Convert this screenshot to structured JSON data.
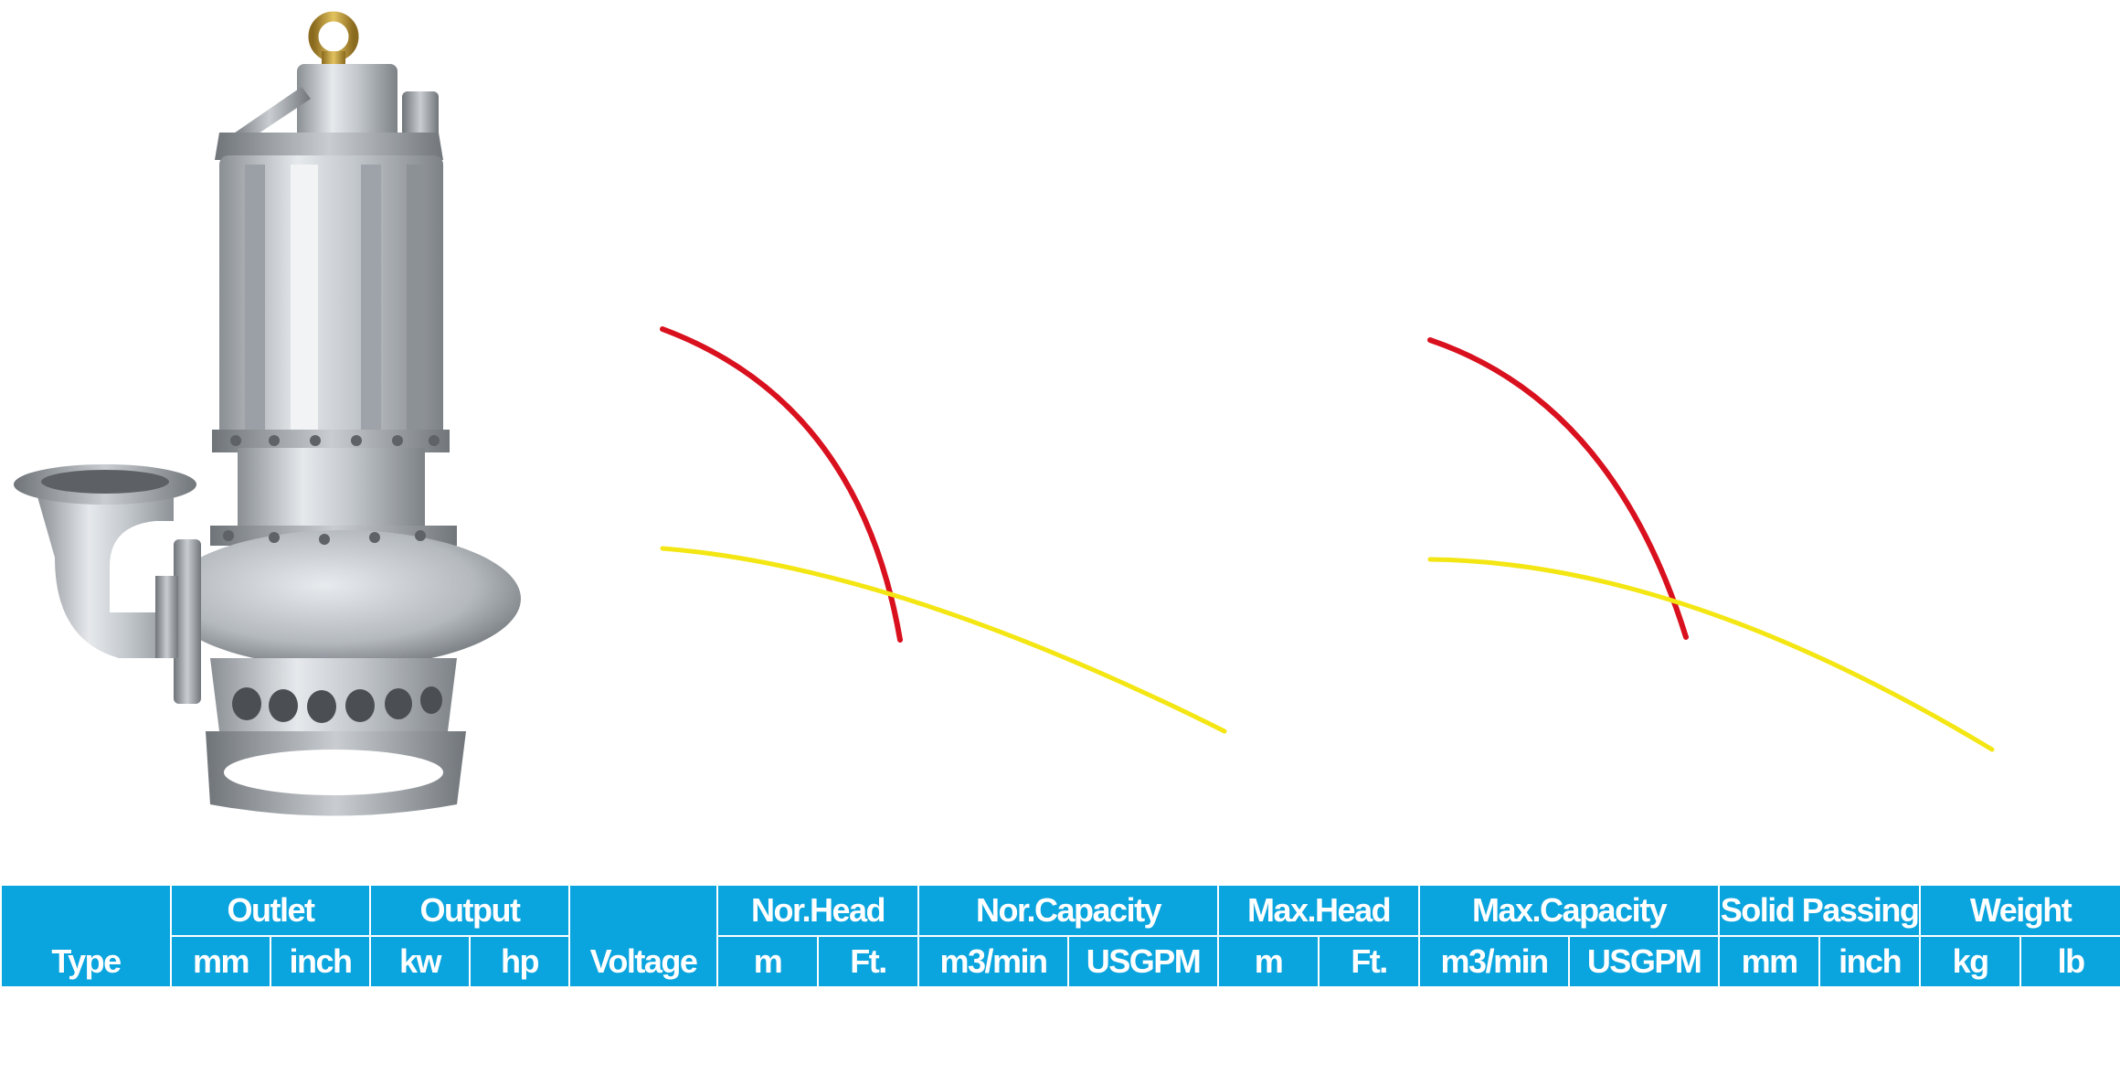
{
  "image": {
    "subject": "pump-photo"
  },
  "curves": {
    "colors": {
      "head": "#d9101e",
      "capacity": "#f3e613"
    }
  },
  "table": {
    "colors": {
      "header_bg": "#0aa4de",
      "text": "#ffffff",
      "border": "#ffffff"
    },
    "groups": {
      "type": "Type",
      "outlet": "Outlet",
      "output": "Output",
      "voltage": "Voltage",
      "nor_head": "Nor.Head",
      "nor_capacity": "Nor.Capacity",
      "max_head": "Max.Head",
      "max_capacity": "Max.Capacity",
      "solid_passing": "Solid Passing",
      "weight": "Weight"
    },
    "units": {
      "outlet_mm": "mm",
      "outlet_inch": "inch",
      "output_kw": "kw",
      "output_hp": "hp",
      "nor_head_m": "m",
      "nor_head_ft": "Ft.",
      "nor_capacity_m3": "m3/min",
      "nor_capacity_usgpm": "USGPM",
      "max_head_m": "m",
      "max_head_ft": "Ft.",
      "max_capacity_m3": "m3/min",
      "max_capacity_usgpm": "USGPM",
      "solid_mm": "mm",
      "solid_inch": "inch",
      "weight_kg": "kg",
      "weight_lb": "lb"
    }
  }
}
